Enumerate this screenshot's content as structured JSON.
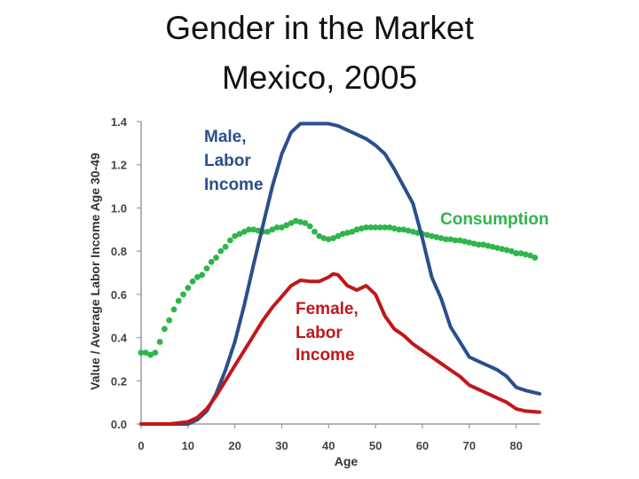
{
  "page": {
    "title_line1": "Gender in the Market",
    "title_line2": "Mexico, 2005"
  },
  "colors": {
    "male": "#2a4f8c",
    "female": "#c01818",
    "consumption": "#2eb54b",
    "axis": "#9a9a9a"
  },
  "chart_data": {
    "type": "line",
    "title": "Gender in the Market Mexico, 2005",
    "xlabel": "Age",
    "ylabel": "Value / Average Labor Income Age 30-49",
    "xlim": [
      0,
      85
    ],
    "ylim": [
      0,
      1.4
    ],
    "x_ticks": [
      "0",
      "10",
      "20",
      "30",
      "40",
      "50",
      "60",
      "70",
      "80"
    ],
    "y_ticks": [
      "0.0",
      "0.2",
      "0.4",
      "0.6",
      "0.8",
      "1.0",
      "1.2",
      "1.4"
    ],
    "annotations": {
      "male": [
        "Male,",
        "Labor",
        "Income"
      ],
      "consumption": [
        "Consumption"
      ],
      "female": [
        "Female,",
        "Labor",
        "Income"
      ]
    },
    "series": [
      {
        "name": "Male, Labor Income",
        "style": "solid",
        "x": [
          0,
          10,
          12,
          14,
          16,
          18,
          20,
          22,
          24,
          26,
          28,
          30,
          32,
          34,
          36,
          38,
          40,
          42,
          44,
          46,
          48,
          50,
          52,
          54,
          56,
          58,
          60,
          62,
          64,
          66,
          68,
          70,
          72,
          74,
          76,
          78,
          80,
          82,
          85
        ],
        "values": [
          0,
          0,
          0.02,
          0.06,
          0.14,
          0.25,
          0.38,
          0.55,
          0.74,
          0.92,
          1.1,
          1.25,
          1.35,
          1.39,
          1.39,
          1.39,
          1.39,
          1.38,
          1.36,
          1.34,
          1.32,
          1.29,
          1.25,
          1.18,
          1.1,
          1.02,
          0.86,
          0.68,
          0.58,
          0.45,
          0.38,
          0.31,
          0.29,
          0.27,
          0.25,
          0.22,
          0.17,
          0.155,
          0.14
        ]
      },
      {
        "name": "Female, Labor Income",
        "style": "solid",
        "x": [
          0,
          6,
          10,
          12,
          14,
          16,
          18,
          20,
          22,
          24,
          26,
          28,
          30,
          32,
          34,
          36,
          38,
          40,
          41,
          42,
          44,
          46,
          48,
          50,
          52,
          54,
          56,
          58,
          60,
          62,
          64,
          66,
          68,
          70,
          72,
          74,
          76,
          78,
          80,
          82,
          85
        ],
        "values": [
          0,
          0,
          0.01,
          0.03,
          0.07,
          0.13,
          0.2,
          0.27,
          0.34,
          0.41,
          0.48,
          0.54,
          0.59,
          0.64,
          0.665,
          0.66,
          0.66,
          0.68,
          0.695,
          0.69,
          0.64,
          0.62,
          0.64,
          0.6,
          0.5,
          0.44,
          0.41,
          0.37,
          0.34,
          0.31,
          0.28,
          0.25,
          0.22,
          0.18,
          0.16,
          0.14,
          0.12,
          0.1,
          0.07,
          0.06,
          0.055
        ]
      },
      {
        "name": "Consumption",
        "style": "dotted",
        "x": [
          0,
          1,
          2,
          3,
          4,
          5,
          6,
          7,
          8,
          9,
          10,
          11,
          12,
          13,
          14,
          15,
          16,
          17,
          18,
          19,
          20,
          21,
          22,
          23,
          24,
          25,
          26,
          27,
          28,
          29,
          30,
          31,
          32,
          33,
          34,
          35,
          36,
          37,
          38,
          39,
          40,
          41,
          42,
          43,
          44,
          45,
          46,
          47,
          48,
          49,
          50,
          51,
          52,
          53,
          54,
          55,
          56,
          57,
          58,
          59,
          60,
          61,
          62,
          63,
          64,
          65,
          66,
          67,
          68,
          69,
          70,
          71,
          72,
          73,
          74,
          75,
          76,
          77,
          78,
          79,
          80,
          81,
          82,
          83,
          84
        ],
        "values": [
          0.33,
          0.33,
          0.32,
          0.33,
          0.38,
          0.44,
          0.48,
          0.53,
          0.57,
          0.6,
          0.63,
          0.66,
          0.68,
          0.69,
          0.72,
          0.75,
          0.77,
          0.8,
          0.82,
          0.85,
          0.87,
          0.88,
          0.89,
          0.9,
          0.9,
          0.895,
          0.89,
          0.89,
          0.9,
          0.91,
          0.91,
          0.92,
          0.93,
          0.94,
          0.935,
          0.93,
          0.915,
          0.89,
          0.87,
          0.86,
          0.855,
          0.86,
          0.87,
          0.88,
          0.885,
          0.89,
          0.9,
          0.905,
          0.91,
          0.91,
          0.91,
          0.91,
          0.91,
          0.91,
          0.905,
          0.9,
          0.9,
          0.895,
          0.89,
          0.885,
          0.88,
          0.875,
          0.87,
          0.865,
          0.86,
          0.855,
          0.855,
          0.85,
          0.85,
          0.845,
          0.84,
          0.835,
          0.83,
          0.83,
          0.825,
          0.82,
          0.815,
          0.81,
          0.805,
          0.8,
          0.79,
          0.79,
          0.785,
          0.78,
          0.77
        ]
      }
    ]
  }
}
